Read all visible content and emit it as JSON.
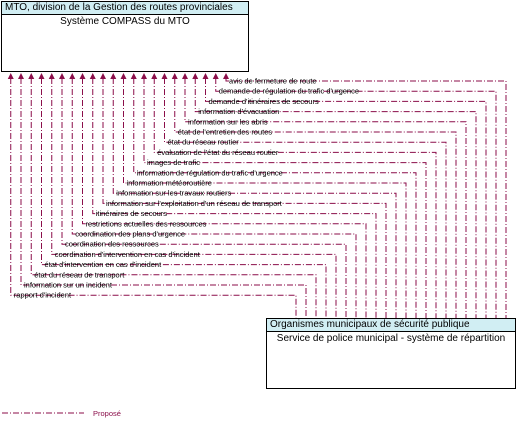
{
  "top_box": {
    "header": "MTO, division de la Gestion des routes provinciales",
    "body": "Système COMPASS du MTO"
  },
  "bottom_box": {
    "header": "Organismes municipaux de sécurité publique",
    "body": "Service de police municipal - système de répartition"
  },
  "flows": [
    {
      "label": "avis de fermeture de route"
    },
    {
      "label": "demande de régulation du trafic d'urgence"
    },
    {
      "label": "demande d'itinéraires de secours"
    },
    {
      "label": "information d'évacuation"
    },
    {
      "label": "information sur les abris"
    },
    {
      "label": "état de l'entretien des routes"
    },
    {
      "label": "état du réseau routier"
    },
    {
      "label": "évaluation de l'état du réseau routier"
    },
    {
      "label": "images de trafic"
    },
    {
      "label": "information de régulation du trafic d'urgence"
    },
    {
      "label": "information météoroutière"
    },
    {
      "label": "information sur les travaux routiers"
    },
    {
      "label": "information sur l'exploitation d'un réseau de transport"
    },
    {
      "label": "itinéraires de secours"
    },
    {
      "label": "restrictions actuelles des ressources"
    },
    {
      "label": "coordination des plans d'urgence"
    },
    {
      "label": "coordination des ressources"
    },
    {
      "label": "coordination d'intervention en cas d'incident"
    },
    {
      "label": "état d'intervention en cas d'incident"
    },
    {
      "label": "état du réseau de transport"
    },
    {
      "label": "information sur un incident"
    },
    {
      "label": "rapport d'incident"
    }
  ],
  "legend": {
    "label": "Proposé"
  },
  "colors": {
    "flow": "#8b0e4a",
    "header_fill": "#d1eef3"
  }
}
